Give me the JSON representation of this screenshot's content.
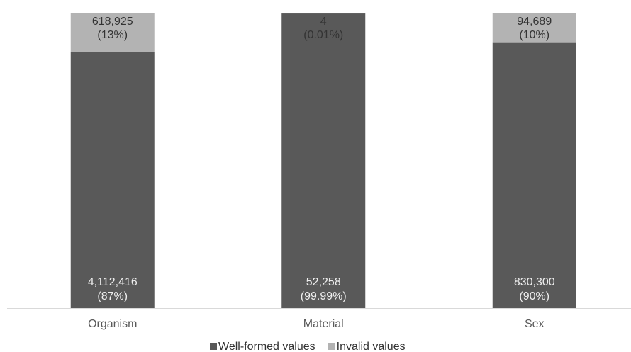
{
  "chart_data": {
    "type": "stacked_bar_100",
    "categories": [
      "Organism",
      "Material",
      "Sex"
    ],
    "series": [
      {
        "name": "Well-formed values",
        "color": "#595959",
        "values": [
          87,
          99.99,
          90
        ],
        "value_labels": [
          "(87%)",
          "(99.99%)",
          "(90%)"
        ],
        "counts": [
          4112416,
          52258,
          830300
        ],
        "count_labels": [
          "4,112,416",
          "52,258",
          "830,300"
        ]
      },
      {
        "name": "Invalid values",
        "color": "#b3b3b3",
        "values": [
          13,
          0.01,
          10
        ],
        "value_labels": [
          "(13%)",
          "(0.01%)",
          "(10%)"
        ],
        "counts": [
          618925,
          4,
          94689
        ],
        "count_labels": [
          "618,925",
          "4",
          "94,689"
        ]
      }
    ],
    "legend": "bottom"
  }
}
